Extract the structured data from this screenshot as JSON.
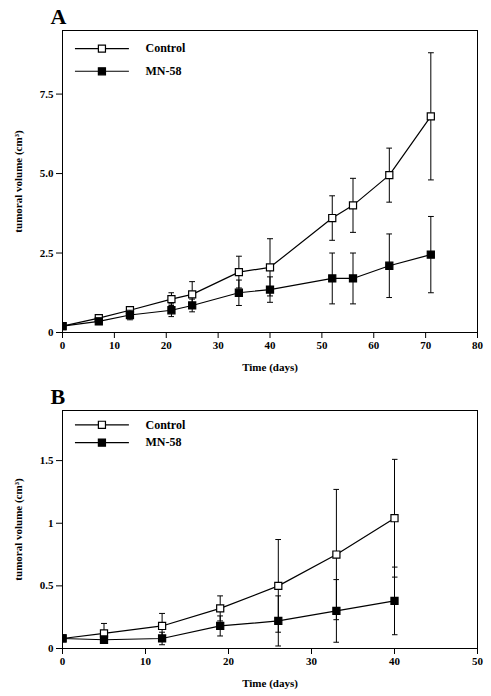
{
  "chart_data": [
    {
      "type": "line",
      "title": "A",
      "x_label": "Time (days)",
      "y_label": "tumoral volume (cm³)",
      "x": [
        0,
        7,
        13,
        21,
        25,
        34,
        40,
        52,
        56,
        63,
        71
      ],
      "series": [
        {
          "name": "Control",
          "color": "#000000",
          "marker": "open_square",
          "values": [
            0.2,
            0.45,
            0.7,
            1.05,
            1.2,
            1.9,
            2.05,
            3.6,
            4.0,
            4.95,
            6.8
          ],
          "errors": [
            0.05,
            0.1,
            0.1,
            0.2,
            0.4,
            0.5,
            0.9,
            0.7,
            0.85,
            0.85,
            2.0
          ]
        },
        {
          "name": "MN-58",
          "color": "#000000",
          "marker": "filled_square",
          "values": [
            0.2,
            0.35,
            0.55,
            0.7,
            0.85,
            1.25,
            1.35,
            1.7,
            1.7,
            2.1,
            2.45
          ],
          "errors": [
            0.1,
            0.1,
            0.15,
            0.2,
            0.2,
            0.4,
            0.4,
            0.8,
            0.8,
            1.0,
            1.2
          ]
        }
      ],
      "xlim": [
        0,
        80
      ],
      "xticks": [
        0,
        10,
        20,
        30,
        40,
        50,
        60,
        70,
        80
      ],
      "ylim": [
        0,
        9.5
      ],
      "yticks": [
        0,
        2.5,
        {
          "value": 5,
          "label": "5.0"
        },
        7.5
      ],
      "legend": "top-left",
      "grid": false
    },
    {
      "type": "line",
      "title": "B",
      "x_label": "Time (days)",
      "y_label": "tumoral volume (cm³)",
      "x": [
        0,
        5,
        12,
        19,
        26,
        33,
        40
      ],
      "series": [
        {
          "name": "Control",
          "color": "#000000",
          "marker": "open_square",
          "values": [
            0.08,
            0.12,
            0.18,
            0.32,
            0.5,
            0.75,
            1.04
          ],
          "errors": [
            0.02,
            0.08,
            0.1,
            0.1,
            0.37,
            0.52,
            0.47
          ]
        },
        {
          "name": "MN-58",
          "color": "#000000",
          "marker": "filled_square",
          "values": [
            0.08,
            0.07,
            0.08,
            0.18,
            0.22,
            0.3,
            0.38
          ],
          "errors": [
            0.02,
            0.03,
            0.05,
            0.08,
            0.2,
            0.25,
            0.27
          ]
        }
      ],
      "xlim": [
        0,
        50
      ],
      "xticks": [
        0,
        10,
        20,
        30,
        40,
        50
      ],
      "ylim": [
        0,
        1.9
      ],
      "yticks": [
        0,
        0.5,
        1,
        1.5
      ],
      "legend": "top-left",
      "grid": false
    }
  ]
}
